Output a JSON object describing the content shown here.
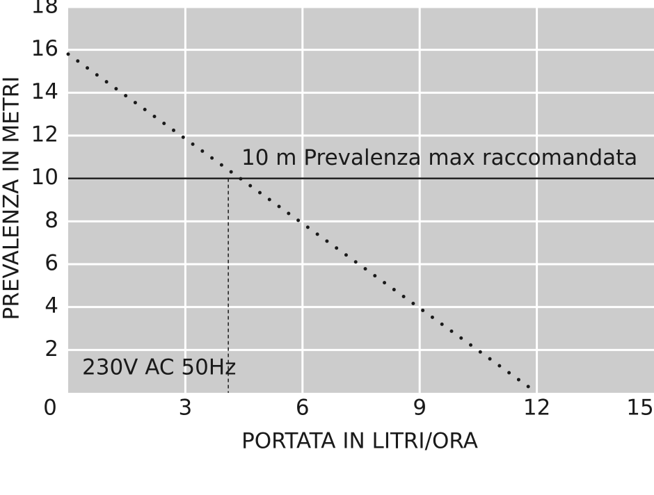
{
  "chart_data": {
    "type": "line",
    "x_label": "PORTATA IN LITRI/ORA",
    "y_label": "PREVALENZA IN METRI",
    "x": [
      0,
      12
    ],
    "series": [
      {
        "name": "230V AC 50Hz",
        "color": "#1a1a1a",
        "values": [
          15.8,
          0
        ]
      }
    ],
    "reference_line": {
      "value": 10,
      "label": "10 m Prevalenza max raccomandata"
    },
    "marker_x": 4.1,
    "xlim": [
      0,
      15
    ],
    "xticks": [
      0,
      3,
      6,
      9,
      12,
      15
    ],
    "ylim": [
      0,
      18
    ],
    "yticks": [
      2,
      4,
      6,
      8,
      10,
      12,
      14,
      16,
      18
    ],
    "grid": true,
    "background": "#cccccc"
  }
}
